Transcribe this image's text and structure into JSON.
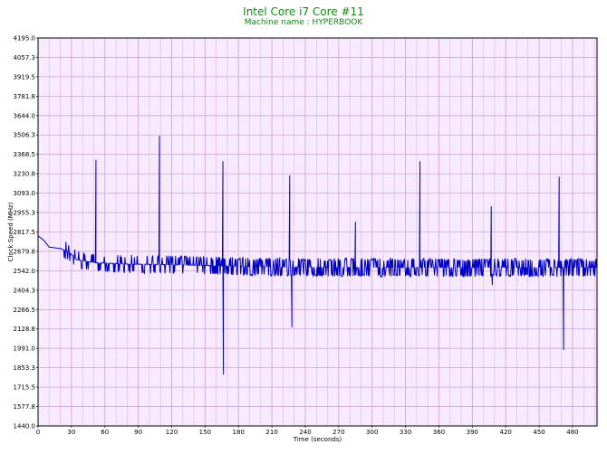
{
  "header": {
    "title": "Intel Core i7 Core #11",
    "subtitle": "Machine name : HYPERBOOK"
  },
  "colors": {
    "plot_background": "#f7eaff",
    "grid": "#d0a6d8",
    "series": "#0000c0",
    "title": "#138a13",
    "frame": "#000000"
  },
  "chart_data": {
    "type": "line",
    "title": "Intel Core i7 Core #11",
    "subtitle": "Machine name : HYPERBOOK",
    "xlabel": "Time (seconds)",
    "ylabel": "Clock Speed (MHz)",
    "xlim": [
      0,
      502
    ],
    "ylim": [
      1440.0,
      4195.0
    ],
    "grid": true,
    "xticks": [
      0,
      30,
      60,
      90,
      120,
      150,
      180,
      210,
      240,
      270,
      300,
      330,
      360,
      390,
      420,
      450,
      480
    ],
    "yticks": [
      "1440.0",
      "1577.8",
      "1715.5",
      "1853.3",
      "1991.0",
      "2128.8",
      "2266.5",
      "2404.3",
      "2542.0",
      "2679.8",
      "2817.5",
      "2955.3",
      "3093.0",
      "3230.8",
      "3368.5",
      "3506.3",
      "3644.0",
      "3781.8",
      "3919.5",
      "4057.3",
      "4195.0"
    ],
    "series": [
      {
        "baseline": [
          [
            0,
            2790
          ],
          [
            5,
            2760
          ],
          [
            10,
            2710
          ],
          [
            20,
            2700
          ],
          [
            27,
            2680
          ],
          [
            35,
            2620
          ],
          [
            50,
            2600
          ],
          [
            80,
            2590
          ],
          [
            120,
            2585
          ],
          [
            150,
            2580
          ],
          [
            200,
            2570
          ],
          [
            300,
            2565
          ],
          [
            400,
            2565
          ],
          [
            502,
            2565
          ]
        ],
        "spikes": [
          {
            "x": 52,
            "y": 3330
          },
          {
            "x": 109,
            "y": 3500
          },
          {
            "x": 166,
            "y": 3320
          },
          {
            "x": 166.5,
            "y": 1805
          },
          {
            "x": 226,
            "y": 3220
          },
          {
            "x": 228,
            "y": 2140
          },
          {
            "x": 285,
            "y": 2890
          },
          {
            "x": 343,
            "y": 3320
          },
          {
            "x": 407,
            "y": 3000
          },
          {
            "x": 408,
            "y": 2440
          },
          {
            "x": 468,
            "y": 3210
          },
          {
            "x": 472,
            "y": 1980
          }
        ]
      }
    ]
  }
}
